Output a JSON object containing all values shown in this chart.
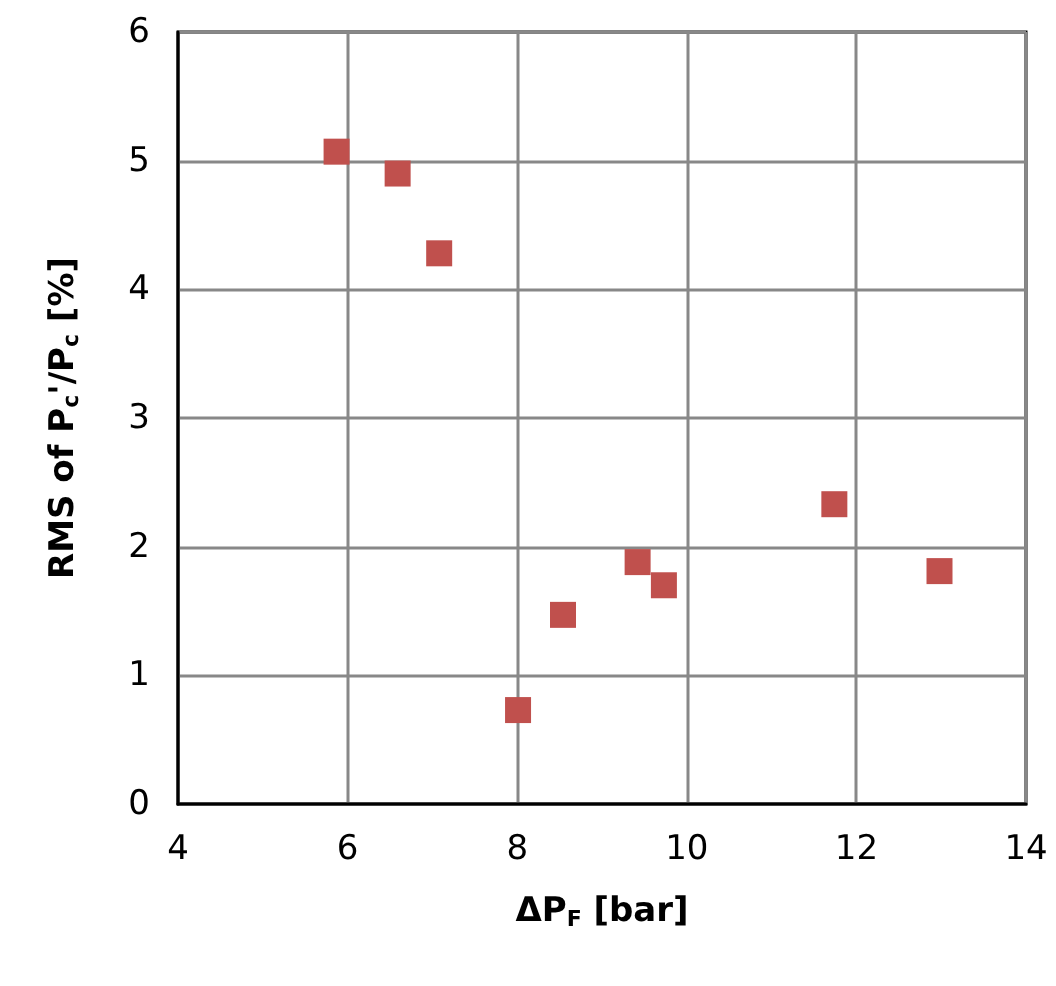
{
  "chart_data": {
    "type": "scatter",
    "xlabel": "ΔP$_{F}$ [bar]",
    "ylabel": "RMS of P$_{c}$'/P$_{c}$ [%]",
    "x": [
      5.87,
      6.59,
      7.08,
      8.01,
      8.54,
      9.42,
      9.73,
      11.74,
      12.98
    ],
    "series": [
      {
        "color": "#c0504d",
        "values": [
          5.07,
          4.9,
          4.28,
          0.73,
          1.47,
          1.88,
          1.7,
          2.33,
          1.81
        ]
      }
    ],
    "xlim": [
      4,
      14
    ],
    "xticks": [
      4,
      6,
      8,
      10,
      12,
      14
    ],
    "ylim": [
      0,
      6
    ],
    "yticks": [
      0,
      1,
      2,
      3,
      4,
      5,
      6
    ],
    "grid": true,
    "marker": "square"
  }
}
